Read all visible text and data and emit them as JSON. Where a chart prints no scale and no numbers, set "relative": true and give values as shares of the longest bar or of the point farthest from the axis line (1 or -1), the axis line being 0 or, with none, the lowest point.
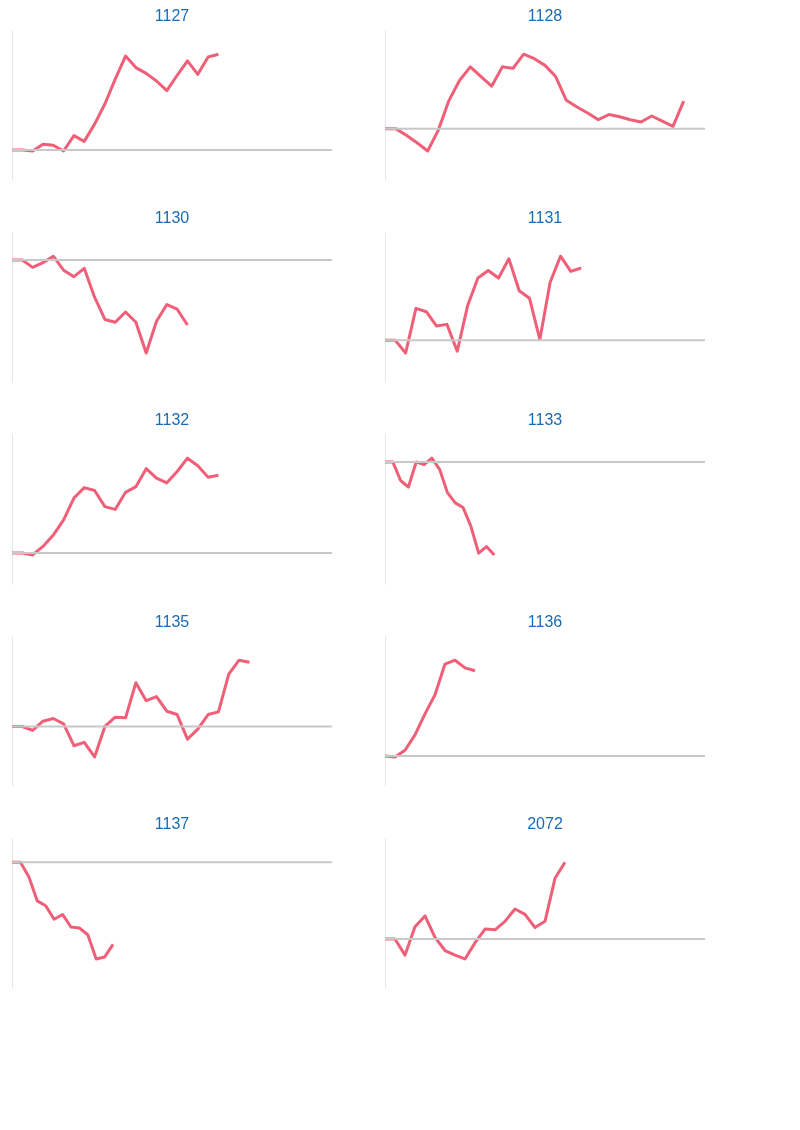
{
  "chart_data": [
    {
      "type": "line",
      "title": "1127",
      "relative": true,
      "tick_labels": false,
      "marker": "none",
      "line_style": "solid",
      "categories": [
        null,
        null,
        null,
        null,
        null,
        null,
        null,
        null,
        null,
        null,
        null,
        null,
        null,
        null,
        null,
        null,
        null,
        null,
        null,
        null,
        null,
        null,
        null,
        null,
        null,
        null,
        null,
        null,
        null,
        null,
        null,
        null
      ],
      "series": [
        {
          "color": "#ef5f78",
          "values": [
            0,
            0,
            -0.01,
            0.06,
            0.05,
            -0.01,
            0.15,
            0.09,
            0.27,
            0.48,
            0.74,
            0.98,
            0.86,
            0.8,
            0.72,
            0.62,
            0.78,
            0.93,
            0.79,
            0.97,
            1,
            null,
            null,
            null,
            null,
            null,
            null,
            null,
            null,
            null,
            null,
            null
          ]
        }
      ]
    },
    {
      "type": "line",
      "title": "1128",
      "relative": true,
      "tick_labels": false,
      "marker": "none",
      "line_style": "solid",
      "categories": [
        null,
        null,
        null,
        null,
        null,
        null,
        null,
        null,
        null,
        null,
        null,
        null,
        null,
        null,
        null,
        null,
        null,
        null,
        null,
        null,
        null,
        null,
        null,
        null,
        null,
        null,
        null,
        null,
        null,
        null,
        null
      ],
      "series": [
        {
          "color": "#ef5f78",
          "values": [
            0,
            0,
            -0.09,
            -0.19,
            -0.3,
            -0.02,
            0.38,
            0.65,
            0.83,
            0.7,
            0.57,
            0.83,
            0.81,
            1,
            0.94,
            0.85,
            0.7,
            0.38,
            0.29,
            0.21,
            0.12,
            0.19,
            0.16,
            0.12,
            0.09,
            0.17,
            0.1,
            0.03,
            0.37,
            null,
            null
          ]
        }
      ]
    },
    {
      "type": "line",
      "title": "1130",
      "relative": true,
      "tick_labels": false,
      "marker": "none",
      "line_style": "solid",
      "categories": [
        null,
        null,
        null,
        null,
        null,
        null,
        null,
        null,
        null,
        null,
        null,
        null,
        null,
        null,
        null,
        null,
        null,
        null,
        null,
        null,
        null,
        null,
        null,
        null,
        null,
        null,
        null,
        null,
        null,
        null,
        null,
        null
      ],
      "series": [
        {
          "color": "#ef5f78",
          "values": [
            0,
            0,
            -0.08,
            -0.03,
            0.04,
            -0.11,
            -0.18,
            -0.09,
            -0.4,
            -0.64,
            -0.67,
            -0.56,
            -0.67,
            -1,
            -0.66,
            -0.48,
            -0.53,
            -0.7,
            null,
            null,
            null,
            null,
            null,
            null,
            null,
            null,
            null,
            null,
            null,
            null,
            null,
            null
          ]
        }
      ]
    },
    {
      "type": "line",
      "title": "1131",
      "relative": true,
      "tick_labels": false,
      "marker": "none",
      "line_style": "solid",
      "categories": [
        null,
        null,
        null,
        null,
        null,
        null,
        null,
        null,
        null,
        null,
        null,
        null,
        null,
        null,
        null,
        null,
        null,
        null,
        null,
        null,
        null,
        null,
        null,
        null,
        null,
        null,
        null,
        null,
        null,
        null,
        null,
        null
      ],
      "series": [
        {
          "color": "#ef5f78",
          "values": [
            0,
            0,
            -0.15,
            0.38,
            0.34,
            0.17,
            0.19,
            -0.13,
            0.41,
            0.74,
            0.83,
            0.74,
            0.97,
            0.59,
            0.5,
            0.01,
            0.69,
            1,
            0.82,
            0.86,
            null,
            null,
            null,
            null,
            null,
            null,
            null,
            null,
            null,
            null,
            null,
            null
          ]
        }
      ]
    },
    {
      "type": "line",
      "title": "1132",
      "relative": true,
      "tick_labels": false,
      "marker": "none",
      "line_style": "solid",
      "categories": [
        null,
        null,
        null,
        null,
        null,
        null,
        null,
        null,
        null,
        null,
        null,
        null,
        null,
        null,
        null,
        null,
        null,
        null,
        null,
        null,
        null,
        null,
        null,
        null,
        null,
        null,
        null,
        null,
        null,
        null,
        null,
        null
      ],
      "series": [
        {
          "color": "#ef5f78",
          "values": [
            0,
            0,
            -0.02,
            0.07,
            0.19,
            0.35,
            0.58,
            0.69,
            0.66,
            0.49,
            0.46,
            0.64,
            0.7,
            0.89,
            0.79,
            0.74,
            0.86,
            1,
            0.92,
            0.8,
            0.82,
            null,
            null,
            null,
            null,
            null,
            null,
            null,
            null,
            null,
            null,
            null
          ]
        }
      ]
    },
    {
      "type": "line",
      "title": "1133",
      "relative": true,
      "tick_labels": false,
      "marker": "none",
      "line_style": "solid",
      "categories": [
        null,
        null,
        null,
        null,
        null,
        null,
        null,
        null,
        null,
        null,
        null,
        null,
        null,
        null,
        null,
        null,
        null,
        null,
        null,
        null,
        null,
        null,
        null,
        null,
        null,
        null,
        null,
        null,
        null,
        null,
        null,
        null,
        null,
        null,
        null,
        null,
        null,
        null,
        null,
        null,
        null,
        null
      ],
      "series": [
        {
          "color": "#ef5f78",
          "values": [
            0,
            0,
            -0.2,
            -0.27,
            0,
            -0.03,
            0.04,
            -0.08,
            -0.33,
            -0.44,
            -0.49,
            -0.69,
            -0.98,
            -0.91,
            -1,
            null,
            null,
            null,
            null,
            null,
            null,
            null,
            null,
            null,
            null,
            null,
            null,
            null,
            null,
            null,
            null,
            null,
            null,
            null,
            null,
            null,
            null,
            null,
            null,
            null,
            null,
            null
          ]
        }
      ]
    },
    {
      "type": "line",
      "title": "1135",
      "relative": true,
      "tick_labels": false,
      "marker": "none",
      "line_style": "solid",
      "categories": [
        null,
        null,
        null,
        null,
        null,
        null,
        null,
        null,
        null,
        null,
        null,
        null,
        null,
        null,
        null,
        null,
        null,
        null,
        null,
        null,
        null,
        null,
        null,
        null,
        null,
        null,
        null,
        null,
        null,
        null,
        null,
        null
      ],
      "series": [
        {
          "color": "#ef5f78",
          "values": [
            0,
            0,
            -0.06,
            0.08,
            0.12,
            0.04,
            -0.29,
            -0.24,
            -0.46,
            0,
            0.14,
            0.13,
            0.66,
            0.39,
            0.45,
            0.23,
            0.18,
            -0.19,
            -0.04,
            0.18,
            0.22,
            0.79,
            1,
            0.97,
            null,
            null,
            null,
            null,
            null,
            null,
            null,
            null
          ]
        }
      ]
    },
    {
      "type": "line",
      "title": "1136",
      "relative": true,
      "tick_labels": false,
      "marker": "none",
      "line_style": "solid",
      "categories": [
        null,
        null,
        null,
        null,
        null,
        null,
        null,
        null,
        null,
        null,
        null,
        null,
        null,
        null,
        null,
        null,
        null,
        null,
        null,
        null,
        null,
        null,
        null,
        null,
        null,
        null,
        null,
        null,
        null,
        null,
        null,
        null,
        null
      ],
      "series": [
        {
          "color": "#ef5f78",
          "values": [
            0,
            -0.01,
            0.06,
            0.22,
            0.44,
            0.64,
            0.96,
            1,
            0.92,
            0.89,
            null,
            null,
            null,
            null,
            null,
            null,
            null,
            null,
            null,
            null,
            null,
            null,
            null,
            null,
            null,
            null,
            null,
            null,
            null,
            null,
            null,
            null,
            null
          ]
        }
      ]
    },
    {
      "type": "line",
      "title": "1137",
      "relative": true,
      "tick_labels": false,
      "marker": "none",
      "line_style": "solid",
      "categories": [
        null,
        null,
        null,
        null,
        null,
        null,
        null,
        null,
        null,
        null,
        null,
        null,
        null,
        null,
        null,
        null,
        null,
        null,
        null,
        null,
        null,
        null,
        null,
        null,
        null,
        null,
        null,
        null,
        null,
        null,
        null,
        null,
        null,
        null,
        null,
        null,
        null,
        null,
        null
      ],
      "series": [
        {
          "color": "#ef5f78",
          "values": [
            0,
            0,
            -0.15,
            -0.4,
            -0.45,
            -0.59,
            -0.54,
            -0.67,
            -0.68,
            -0.75,
            -1,
            -0.98,
            -0.85,
            null,
            null,
            null,
            null,
            null,
            null,
            null,
            null,
            null,
            null,
            null,
            null,
            null,
            null,
            null,
            null,
            null,
            null,
            null,
            null,
            null,
            null,
            null,
            null,
            null,
            null
          ]
        }
      ]
    },
    {
      "type": "line",
      "title": "2072",
      "relative": true,
      "tick_labels": false,
      "marker": "none",
      "line_style": "solid",
      "categories": [
        null,
        null,
        null,
        null,
        null,
        null,
        null,
        null,
        null,
        null,
        null,
        null,
        null,
        null,
        null,
        null,
        null,
        null,
        null,
        null,
        null,
        null,
        null,
        null,
        null,
        null,
        null,
        null,
        null,
        null,
        null,
        null,
        null
      ],
      "series": [
        {
          "color": "#ef5f78",
          "values": [
            0,
            0,
            -0.21,
            0.16,
            0.3,
            0.02,
            -0.15,
            -0.21,
            -0.26,
            -0.05,
            0.13,
            0.12,
            0.23,
            0.39,
            0.32,
            0.15,
            0.23,
            0.79,
            1,
            null,
            null,
            null,
            null,
            null,
            null,
            null,
            null,
            null,
            null,
            null,
            null,
            null,
            null
          ]
        }
      ]
    }
  ]
}
